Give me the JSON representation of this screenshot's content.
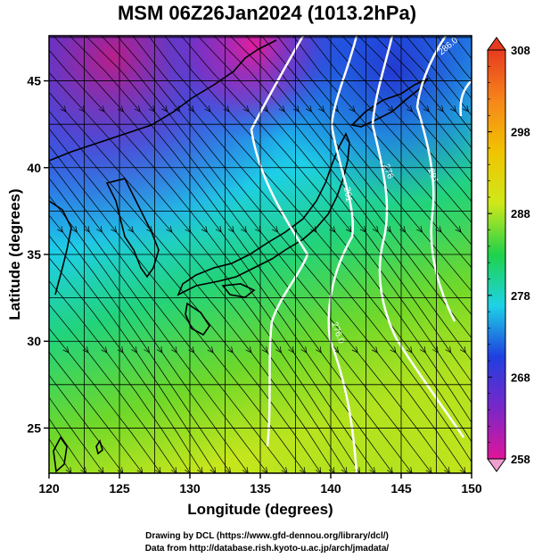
{
  "title": "MSM 06Z26Jan2024 (1013.2hPa)",
  "credits": {
    "line1": "Drawing by DCL (https://www.gfd-dennou.org/library/dcl/)",
    "line2": "Data from http://database.rish.kyoto-u.ac.jp/arch/jmadata/"
  },
  "chart_data": {
    "type": "heatmap",
    "xlabel": "Longitude (degrees)",
    "ylabel": "Latitude  (degrees)",
    "xlim": [
      120,
      150
    ],
    "ylim": [
      22.4,
      47.6
    ],
    "x_ticks": [
      "120",
      "125",
      "130",
      "135",
      "140",
      "145",
      "150"
    ],
    "y_ticks": [
      "25",
      "30",
      "35",
      "40",
      "45"
    ],
    "grid": true,
    "colorbar": {
      "range": [
        258,
        308
      ],
      "ticks": [
        "258",
        "268",
        "278",
        "288",
        "298",
        "308"
      ],
      "colors": [
        "#e0159a",
        "#7a27c9",
        "#1f3fe0",
        "#1ed2e6",
        "#1ed24a",
        "#cfe81a",
        "#f0c400",
        "#f7861a",
        "#e73b1f"
      ]
    },
    "contour_labels": [
      "286.0",
      "261",
      "276.0",
      "276",
      "281"
    ]
  }
}
